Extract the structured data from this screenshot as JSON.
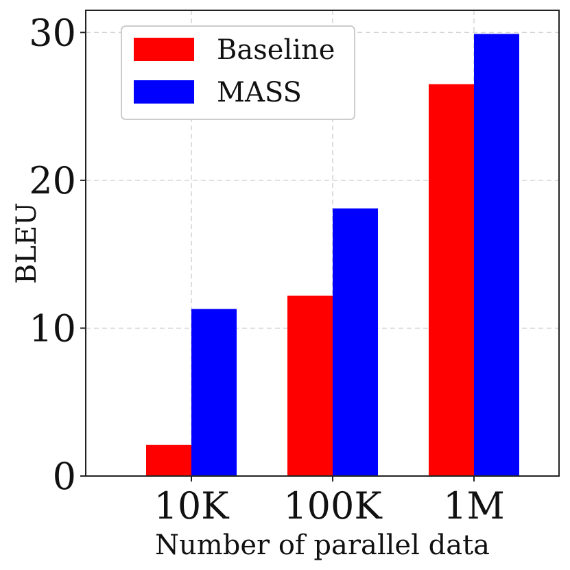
{
  "chart_data": {
    "type": "bar",
    "categories": [
      "10K",
      "100K",
      "1M"
    ],
    "series": [
      {
        "name": "Baseline",
        "values": [
          2.1,
          12.2,
          26.5
        ],
        "color": "#ff0000"
      },
      {
        "name": "MASS",
        "values": [
          11.3,
          18.1,
          29.9
        ],
        "color": "#0000ff"
      }
    ],
    "title": "",
    "xlabel": "Number of parallel data",
    "ylabel": "BLEU",
    "ylim": [
      0,
      31.5
    ],
    "yticks": [
      0,
      10,
      20,
      30
    ],
    "grid": true,
    "legend_position": "top-left"
  }
}
